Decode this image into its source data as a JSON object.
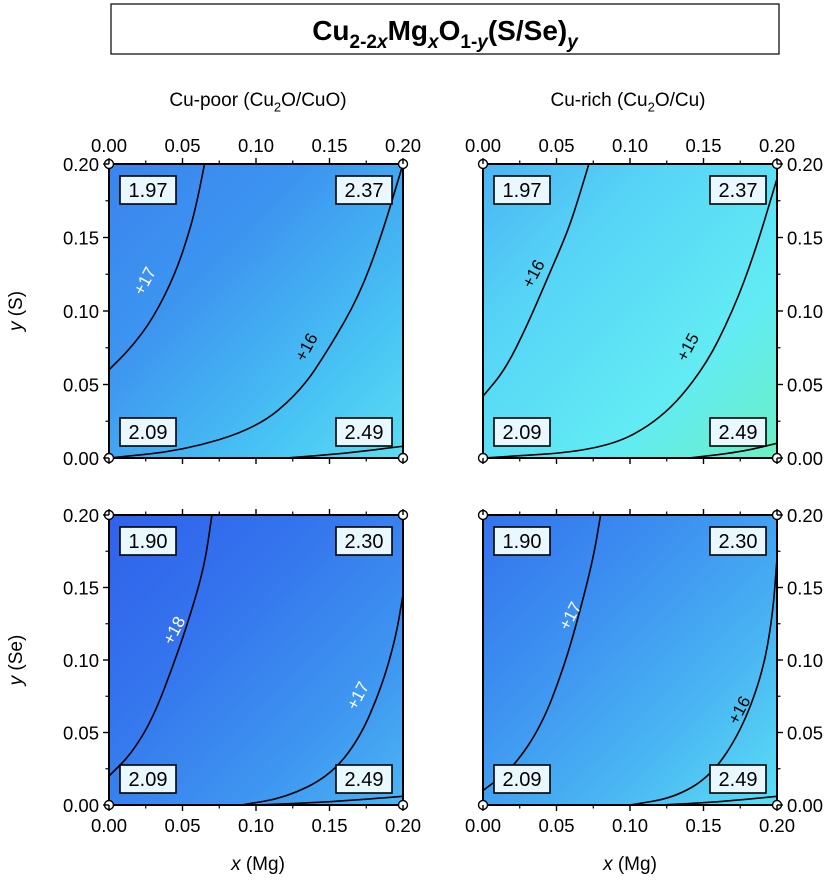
{
  "title": {
    "parts": [
      {
        "t": "Cu",
        "s": "n"
      },
      {
        "t": "2-2",
        "s": "sub"
      },
      {
        "t": "x",
        "s": "subi"
      },
      {
        "t": "Mg",
        "s": "n"
      },
      {
        "t": "x",
        "s": "subi"
      },
      {
        "t": "O",
        "s": "n"
      },
      {
        "t": "1-",
        "s": "sub"
      },
      {
        "t": "y",
        "s": "subi"
      },
      {
        "t": "(S/Se)",
        "s": "n"
      },
      {
        "t": "y",
        "s": "subi"
      }
    ]
  },
  "column_headers": [
    {
      "parts": [
        {
          "t": "Cu-poor (Cu",
          "s": "n"
        },
        {
          "t": "2",
          "s": "sub"
        },
        {
          "t": "O/CuO)",
          "s": "n"
        }
      ]
    },
    {
      "parts": [
        {
          "t": "Cu-rich (Cu",
          "s": "n"
        },
        {
          "t": "2",
          "s": "sub"
        },
        {
          "t": "O/Cu)",
          "s": "n"
        }
      ]
    }
  ],
  "axis_labels": {
    "x": [
      {
        "t": "x",
        "s": "i"
      },
      {
        "t": " (Mg)",
        "s": "n"
      }
    ],
    "y_top": [
      {
        "t": "y",
        "s": "i"
      },
      {
        "t": " (S)",
        "s": "n"
      }
    ],
    "y_bottom": [
      {
        "t": "y",
        "s": "i"
      },
      {
        "t": " (Se)",
        "s": "n"
      }
    ]
  },
  "colors": {
    "frame": "#000000",
    "label_box_fill": "#e9f8ff",
    "grid_tick": "#000000"
  },
  "chart_data": [
    {
      "type": "heatmap",
      "name": "Cu-poor, S",
      "x": {
        "label": "x (Mg)",
        "range": [
          0,
          0.2
        ],
        "ticks": [
          "0.00",
          "0.05",
          "0.10",
          "0.15",
          "0.20"
        ]
      },
      "y": {
        "label": "y (S)",
        "range": [
          0,
          0.2
        ],
        "ticks": [
          "0.00",
          "0.05",
          "0.10",
          "0.15",
          "0.20"
        ]
      },
      "corner_values": {
        "top_left": "1.97",
        "top_right": "2.37",
        "bottom_left": "2.09",
        "bottom_right": "2.49"
      },
      "color_stops": [
        [
          "#3a84ee",
          0
        ],
        [
          "#3d95f0",
          0.35
        ],
        [
          "#48c4f4",
          0.75
        ],
        [
          "#5cdcf2",
          1
        ]
      ],
      "contours": [
        {
          "label": "+17",
          "label_color": "#ffffff",
          "label_at": [
            0.025,
            0.12
          ],
          "points": [
            [
              0,
              0.06
            ],
            [
              0.015,
              0.075
            ],
            [
              0.03,
              0.095
            ],
            [
              0.045,
              0.125
            ],
            [
              0.055,
              0.155
            ],
            [
              0.06,
              0.175
            ],
            [
              0.065,
              0.2
            ]
          ]
        },
        {
          "label": "+16",
          "label_color": "#000000",
          "label_at": [
            0.135,
            0.075
          ],
          "points": [
            [
              0,
              0
            ],
            [
              0.05,
              0.005
            ],
            [
              0.1,
              0.02
            ],
            [
              0.13,
              0.045
            ],
            [
              0.15,
              0.075
            ],
            [
              0.17,
              0.11
            ],
            [
              0.185,
              0.15
            ],
            [
              0.2,
              0.2
            ]
          ]
        },
        {
          "label": "",
          "points": [
            [
              0.12,
              0
            ],
            [
              0.16,
              0.003
            ],
            [
              0.2,
              0.008
            ]
          ]
        }
      ]
    },
    {
      "type": "heatmap",
      "name": "Cu-rich, S",
      "x": {
        "label": "x (Mg)",
        "range": [
          0,
          0.2
        ],
        "ticks": [
          "0.00",
          "0.05",
          "0.10",
          "0.15",
          "0.20"
        ]
      },
      "y": {
        "label": "y (S)",
        "range": [
          0,
          0.2
        ],
        "ticks": [
          "0.00",
          "0.05",
          "0.10",
          "0.15",
          "0.20"
        ]
      },
      "corner_values": {
        "top_left": "1.97",
        "top_right": "2.37",
        "bottom_left": "2.09",
        "bottom_right": "2.49"
      },
      "color_stops": [
        [
          "#4bb4f4",
          0
        ],
        [
          "#56d4f6",
          0.3
        ],
        [
          "#62ebf4",
          0.7
        ],
        [
          "#6af0c4",
          1
        ]
      ],
      "contours": [
        {
          "label": "+16",
          "label_color": "#000000",
          "label_at": [
            0.035,
            0.125
          ],
          "points": [
            [
              0,
              0.042
            ],
            [
              0.015,
              0.06
            ],
            [
              0.03,
              0.09
            ],
            [
              0.045,
              0.125
            ],
            [
              0.058,
              0.155
            ],
            [
              0.066,
              0.18
            ],
            [
              0.072,
              0.2
            ]
          ]
        },
        {
          "label": "+15",
          "label_color": "#000000",
          "label_at": [
            0.14,
            0.075
          ],
          "points": [
            [
              0,
              0
            ],
            [
              0.08,
              0.005
            ],
            [
              0.12,
              0.025
            ],
            [
              0.15,
              0.06
            ],
            [
              0.17,
              0.1
            ],
            [
              0.185,
              0.14
            ],
            [
              0.2,
              0.19
            ]
          ]
        },
        {
          "label": "",
          "points": [
            [
              0.14,
              0
            ],
            [
              0.175,
              0.004
            ],
            [
              0.2,
              0.01
            ]
          ]
        }
      ]
    },
    {
      "type": "heatmap",
      "name": "Cu-poor, Se",
      "x": {
        "label": "x (Mg)",
        "range": [
          0,
          0.2
        ],
        "ticks": [
          "0.00",
          "0.05",
          "0.10",
          "0.15",
          "0.20"
        ]
      },
      "y": {
        "label": "y (Se)",
        "range": [
          0,
          0.2
        ],
        "ticks": [
          "0.00",
          "0.05",
          "0.10",
          "0.15",
          "0.20"
        ]
      },
      "corner_values": {
        "top_left": "1.90",
        "top_right": "2.30",
        "bottom_left": "2.09",
        "bottom_right": "2.49"
      },
      "color_stops": [
        [
          "#2f62ec",
          0
        ],
        [
          "#3474ed",
          0.35
        ],
        [
          "#3f98f1",
          0.75
        ],
        [
          "#4bb6f2",
          1
        ]
      ],
      "contours": [
        {
          "label": "+18",
          "label_color": "#ffffff",
          "label_at": [
            0.045,
            0.12
          ],
          "points": [
            [
              0,
              0.02
            ],
            [
              0.015,
              0.035
            ],
            [
              0.03,
              0.06
            ],
            [
              0.045,
              0.1
            ],
            [
              0.055,
              0.13
            ],
            [
              0.065,
              0.165
            ],
            [
              0.07,
              0.2
            ]
          ]
        },
        {
          "label": "+17",
          "label_color": "#ffffff",
          "label_at": [
            0.17,
            0.075
          ],
          "points": [
            [
              0.09,
              0
            ],
            [
              0.12,
              0.005
            ],
            [
              0.15,
              0.02
            ],
            [
              0.17,
              0.045
            ],
            [
              0.185,
              0.08
            ],
            [
              0.195,
              0.115
            ],
            [
              0.2,
              0.145
            ]
          ]
        },
        {
          "label": "",
          "points": [
            [
              0.1,
              0
            ],
            [
              0.15,
              0.002
            ],
            [
              0.2,
              0.006
            ]
          ]
        }
      ]
    },
    {
      "type": "heatmap",
      "name": "Cu-rich, Se",
      "x": {
        "label": "x (Mg)",
        "range": [
          0,
          0.2
        ],
        "ticks": [
          "0.00",
          "0.05",
          "0.10",
          "0.15",
          "0.20"
        ]
      },
      "y": {
        "label": "y (Se)",
        "range": [
          0,
          0.2
        ],
        "ticks": [
          "0.00",
          "0.05",
          "0.10",
          "0.15",
          "0.20"
        ]
      },
      "corner_values": {
        "top_left": "1.90",
        "top_right": "2.30",
        "bottom_left": "2.09",
        "bottom_right": "2.49"
      },
      "color_stops": [
        [
          "#3473ed",
          0
        ],
        [
          "#3b8cf0",
          0.3
        ],
        [
          "#4ab6f3",
          0.7
        ],
        [
          "#5ae0f4",
          1
        ]
      ],
      "contours": [
        {
          "label": "+17",
          "label_color": "#ffffff",
          "label_at": [
            0.06,
            0.13
          ],
          "points": [
            [
              0,
              0.01
            ],
            [
              0.02,
              0.025
            ],
            [
              0.04,
              0.055
            ],
            [
              0.055,
              0.095
            ],
            [
              0.065,
              0.13
            ],
            [
              0.075,
              0.17
            ],
            [
              0.08,
              0.2
            ]
          ]
        },
        {
          "label": "+16",
          "label_color": "#000000",
          "label_at": [
            0.175,
            0.065
          ],
          "points": [
            [
              0.1,
              0
            ],
            [
              0.13,
              0.005
            ],
            [
              0.155,
              0.02
            ],
            [
              0.175,
              0.05
            ],
            [
              0.19,
              0.09
            ],
            [
              0.197,
              0.13
            ],
            [
              0.2,
              0.17
            ]
          ]
        },
        {
          "label": "",
          "points": [
            [
              0.12,
              0
            ],
            [
              0.16,
              0.002
            ],
            [
              0.2,
              0.006
            ]
          ]
        }
      ]
    }
  ]
}
